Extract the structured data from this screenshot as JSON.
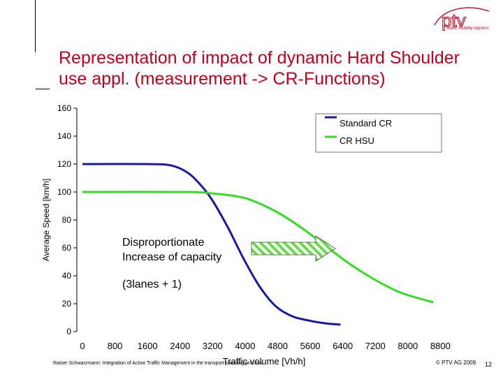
{
  "slide": {
    "title": "Representation of impact of dynamic Hard Shoulder use appl. (measurement -> CR-Functions)",
    "logo_text": "ptv",
    "logo_tagline": "traffic mobility logistics",
    "footer_left": "Rainer Schwarzmann: Integration of Active Traffic Management in the transport planning process",
    "footer_right": "© PTV AG 2009",
    "page_number": "12"
  },
  "colors": {
    "title": "#c0001e",
    "standard_cr": "#1a1aa6",
    "cr_hsu": "#33dd22",
    "arrow_fill": "#66dd44"
  },
  "annotations": {
    "line1": "Disproportionate",
    "line2": "Increase of capacity",
    "line3": "(3lanes + 1)"
  },
  "chart_data": {
    "type": "line",
    "title": "",
    "xlabel": "Traffic volume [Vh/h]",
    "ylabel": "Average Speed [km/h]",
    "xlim": [
      0,
      8800
    ],
    "ylim": [
      0,
      160
    ],
    "x_ticks": [
      0,
      800,
      1600,
      2400,
      3200,
      4000,
      4800,
      5600,
      6400,
      7200,
      8000,
      8800
    ],
    "y_ticks": [
      0,
      20,
      40,
      60,
      80,
      100,
      120,
      140,
      160
    ],
    "grid": false,
    "legend_position": "top-right",
    "series": [
      {
        "name": "Standard CR",
        "color": "#1a1aa6",
        "points": [
          [
            0,
            120
          ],
          [
            1600,
            120
          ],
          [
            2200,
            119
          ],
          [
            2600,
            114
          ],
          [
            2900,
            106
          ],
          [
            3200,
            95
          ],
          [
            3600,
            75
          ],
          [
            4000,
            52
          ],
          [
            4400,
            32
          ],
          [
            4800,
            18
          ],
          [
            5200,
            11
          ],
          [
            5600,
            8
          ],
          [
            6000,
            6
          ],
          [
            6400,
            5
          ]
        ]
      },
      {
        "name": "CR HSU",
        "color": "#33dd22",
        "points": [
          [
            0,
            100
          ],
          [
            2600,
            100
          ],
          [
            3200,
            99
          ],
          [
            3800,
            97
          ],
          [
            4200,
            94
          ],
          [
            4800,
            86
          ],
          [
            5400,
            75
          ],
          [
            6000,
            62
          ],
          [
            6600,
            49
          ],
          [
            7200,
            38
          ],
          [
            7800,
            29
          ],
          [
            8200,
            25
          ],
          [
            8700,
            21
          ]
        ]
      }
    ]
  }
}
